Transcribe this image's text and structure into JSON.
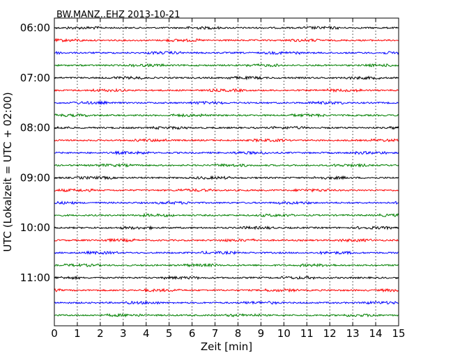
{
  "chart_data": {
    "type": "line",
    "title": "BW.MANZ..EHZ 2013-10-21",
    "xlabel": "Zeit  [min]",
    "ylabel": "UTC (Lokalzeit = UTC + 02:00)",
    "xlim": [
      0,
      15
    ],
    "x_ticks": [
      "0",
      "1",
      "2",
      "3",
      "4",
      "5",
      "6",
      "7",
      "8",
      "9",
      "10",
      "11",
      "12",
      "13",
      "14",
      "15"
    ],
    "y_ticks": [
      "06:00",
      "07:00",
      "08:00",
      "09:00",
      "10:00",
      "11:00"
    ],
    "grid": "vertical dotted",
    "trace_colors": [
      "#000000",
      "#ff0000",
      "#0000ff",
      "#008000"
    ],
    "traces": [
      {
        "start": "06:00",
        "color": "#000000"
      },
      {
        "start": "06:15",
        "color": "#ff0000"
      },
      {
        "start": "06:30",
        "color": "#0000ff"
      },
      {
        "start": "06:45",
        "color": "#008000"
      },
      {
        "start": "07:00",
        "color": "#000000"
      },
      {
        "start": "07:15",
        "color": "#ff0000"
      },
      {
        "start": "07:30",
        "color": "#0000ff"
      },
      {
        "start": "07:45",
        "color": "#008000"
      },
      {
        "start": "08:00",
        "color": "#000000"
      },
      {
        "start": "08:15",
        "color": "#ff0000"
      },
      {
        "start": "08:30",
        "color": "#0000ff"
      },
      {
        "start": "08:45",
        "color": "#008000"
      },
      {
        "start": "09:00",
        "color": "#000000"
      },
      {
        "start": "09:15",
        "color": "#ff0000"
      },
      {
        "start": "09:30",
        "color": "#0000ff"
      },
      {
        "start": "09:45",
        "color": "#008000"
      },
      {
        "start": "10:00",
        "color": "#000000"
      },
      {
        "start": "10:15",
        "color": "#ff0000"
      },
      {
        "start": "10:30",
        "color": "#0000ff"
      },
      {
        "start": "10:45",
        "color": "#008000"
      },
      {
        "start": "11:00",
        "color": "#000000"
      },
      {
        "start": "11:15",
        "color": "#ff0000"
      },
      {
        "start": "11:30",
        "color": "#0000ff"
      },
      {
        "start": "11:45",
        "color": "#008000"
      }
    ]
  }
}
